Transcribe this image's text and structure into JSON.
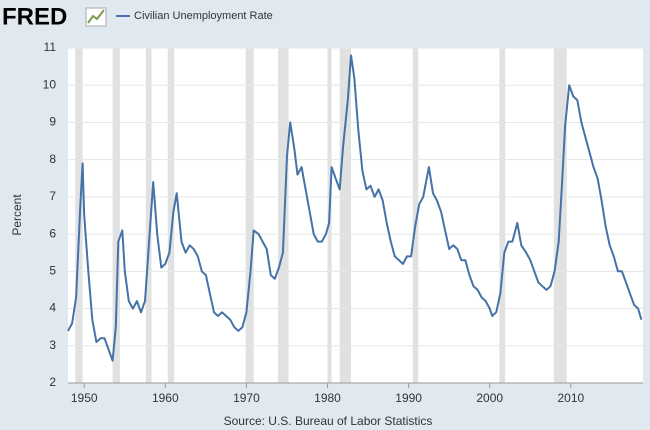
{
  "chart_data": {
    "type": "line",
    "logo": "FRED",
    "ylabel": "Percent",
    "source": "Source: U.S. Bureau of Labor Statistics",
    "xlim": [
      1948,
      2018.9
    ],
    "ylim": [
      2,
      11
    ],
    "xticks": [
      1950,
      1960,
      1970,
      1980,
      1990,
      2000,
      2010
    ],
    "yticks": [
      2,
      3,
      4,
      5,
      6,
      7,
      8,
      9,
      10,
      11
    ],
    "grid": true,
    "recession_color": "#e1e1e1",
    "recessions": [
      [
        1948.9,
        1949.8
      ],
      [
        1953.5,
        1954.4
      ],
      [
        1957.6,
        1958.3
      ],
      [
        1960.3,
        1961.1
      ],
      [
        1969.9,
        1970.9
      ],
      [
        1973.9,
        1975.2
      ],
      [
        1980.0,
        1980.5
      ],
      [
        1981.5,
        1982.9
      ],
      [
        1990.5,
        1991.2
      ],
      [
        2001.2,
        2001.9
      ],
      [
        2007.9,
        2009.5
      ]
    ],
    "x": [
      1948.0,
      1948.5,
      1949.0,
      1949.5,
      1949.8,
      1950.0,
      1950.5,
      1951.0,
      1951.5,
      1952.0,
      1952.5,
      1953.0,
      1953.5,
      1953.9,
      1954.2,
      1954.7,
      1955.0,
      1955.5,
      1956.0,
      1956.5,
      1957.0,
      1957.5,
      1958.0,
      1958.5,
      1959.0,
      1959.5,
      1960.0,
      1960.5,
      1961.0,
      1961.4,
      1962.0,
      1962.5,
      1963.0,
      1963.5,
      1964.0,
      1964.5,
      1965.0,
      1965.5,
      1966.0,
      1966.5,
      1967.0,
      1967.5,
      1968.0,
      1968.5,
      1969.0,
      1969.5,
      1970.0,
      1970.5,
      1970.9,
      1971.5,
      1972.0,
      1972.5,
      1973.0,
      1973.5,
      1974.0,
      1974.5,
      1975.0,
      1975.4,
      1975.9,
      1976.3,
      1976.8,
      1977.3,
      1977.8,
      1978.3,
      1978.8,
      1979.3,
      1979.8,
      1980.2,
      1980.5,
      1981.0,
      1981.5,
      1981.9,
      1982.5,
      1982.9,
      1983.3,
      1983.8,
      1984.3,
      1984.8,
      1985.3,
      1985.8,
      1986.3,
      1986.8,
      1987.3,
      1987.8,
      1988.3,
      1988.8,
      1989.3,
      1989.8,
      1990.3,
      1990.8,
      1991.3,
      1991.8,
      1992.5,
      1993.0,
      1993.5,
      1994.0,
      1994.5,
      1995.0,
      1995.5,
      1996.0,
      1996.5,
      1997.0,
      1997.5,
      1998.0,
      1998.5,
      1999.0,
      1999.5,
      2000.0,
      2000.3,
      2000.8,
      2001.3,
      2001.8,
      2002.3,
      2002.8,
      2003.4,
      2003.9,
      2004.5,
      2005.0,
      2005.5,
      2006.0,
      2006.5,
      2007.0,
      2007.5,
      2008.0,
      2008.5,
      2008.9,
      2009.3,
      2009.8,
      2010.3,
      2010.8,
      2011.3,
      2011.8,
      2012.3,
      2012.8,
      2013.3,
      2013.8,
      2014.3,
      2014.8,
      2015.3,
      2015.8,
      2016.3,
      2016.8,
      2017.3,
      2017.8,
      2018.3,
      2018.7
    ],
    "series": [
      {
        "name": "Civilian Unemployment Rate",
        "color": "#4572a7",
        "values": [
          3.4,
          3.6,
          4.3,
          6.7,
          7.9,
          6.5,
          5.0,
          3.7,
          3.1,
          3.2,
          3.2,
          2.9,
          2.6,
          3.5,
          5.8,
          6.1,
          5.0,
          4.2,
          4.0,
          4.2,
          3.9,
          4.2,
          5.8,
          7.4,
          6.0,
          5.1,
          5.2,
          5.5,
          6.6,
          7.1,
          5.8,
          5.5,
          5.7,
          5.6,
          5.4,
          5.0,
          4.9,
          4.4,
          3.9,
          3.8,
          3.9,
          3.8,
          3.7,
          3.5,
          3.4,
          3.5,
          3.9,
          5.0,
          6.1,
          6.0,
          5.8,
          5.6,
          4.9,
          4.8,
          5.1,
          5.5,
          8.1,
          9.0,
          8.3,
          7.6,
          7.8,
          7.2,
          6.6,
          6.0,
          5.8,
          5.8,
          6.0,
          6.3,
          7.8,
          7.5,
          7.2,
          8.3,
          9.6,
          10.8,
          10.2,
          8.8,
          7.7,
          7.2,
          7.3,
          7.0,
          7.2,
          6.9,
          6.3,
          5.8,
          5.4,
          5.3,
          5.2,
          5.4,
          5.4,
          6.2,
          6.8,
          7.0,
          7.8,
          7.1,
          6.9,
          6.6,
          6.1,
          5.6,
          5.7,
          5.6,
          5.3,
          5.3,
          4.9,
          4.6,
          4.5,
          4.3,
          4.2,
          4.0,
          3.8,
          3.9,
          4.4,
          5.5,
          5.8,
          5.8,
          6.3,
          5.7,
          5.5,
          5.3,
          5.0,
          4.7,
          4.6,
          4.5,
          4.6,
          5.0,
          5.8,
          7.3,
          8.9,
          10.0,
          9.7,
          9.6,
          9.0,
          8.6,
          8.2,
          7.8,
          7.5,
          6.9,
          6.2,
          5.7,
          5.4,
          5.0,
          5.0,
          4.7,
          4.4,
          4.1,
          4.0,
          3.7
        ]
      }
    ]
  }
}
